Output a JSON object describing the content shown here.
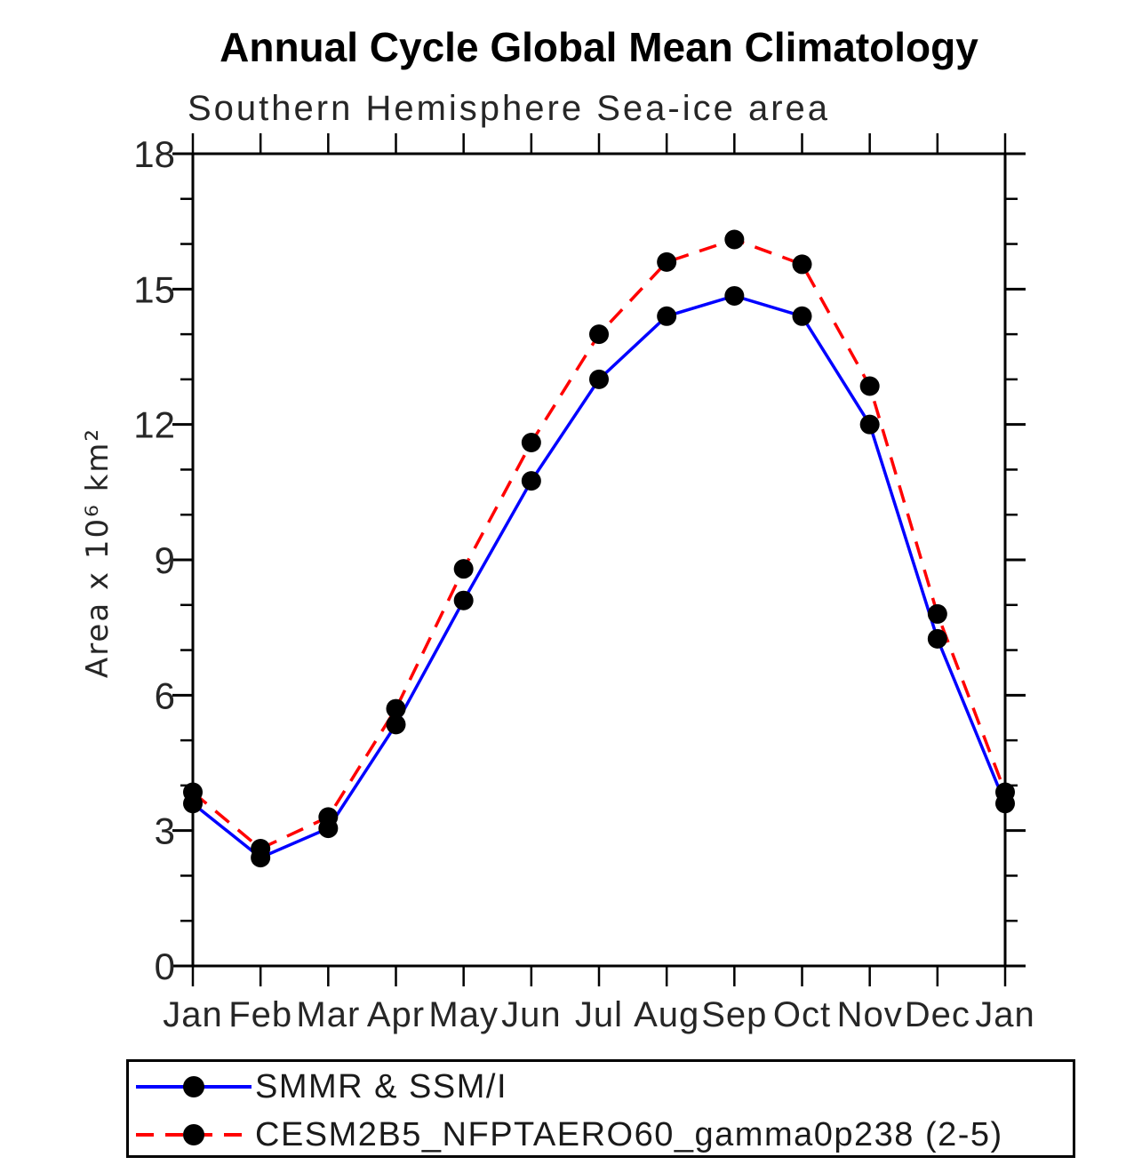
{
  "chart_data": {
    "type": "line",
    "title": "Annual Cycle Global Mean Climatology",
    "subtitle": "Southern Hemisphere Sea-ice area",
    "xlabel": "",
    "ylabel": "Area x 10⁶ km²",
    "categories": [
      "Jan",
      "Feb",
      "Mar",
      "Apr",
      "May",
      "Jun",
      "Jul",
      "Aug",
      "Sep",
      "Oct",
      "Nov",
      "Dec",
      "Jan"
    ],
    "ylim": [
      0,
      18
    ],
    "y_major_tick_step": 3,
    "y_minor_tick_step": 1,
    "y_major_tick_labels": [
      "0",
      "3",
      "6",
      "9",
      "12",
      "15",
      "18"
    ],
    "grid": false,
    "legend_position": "bottom-left-box",
    "axis_color": "#000000",
    "series": [
      {
        "name": "SMMR & SSM/I",
        "color": "#0000ff",
        "line_style": "solid",
        "marker": "circle",
        "marker_color": "#000000",
        "values": [
          3.6,
          2.4,
          3.05,
          5.35,
          8.1,
          10.75,
          13.0,
          14.4,
          14.85,
          14.4,
          12.0,
          7.25,
          3.6
        ]
      },
      {
        "name": "CESM2B5_NFPTAERO60_gamma0p238 (2-5)",
        "color": "#ff0000",
        "line_style": "dashed",
        "marker": "circle",
        "marker_color": "#000000",
        "values": [
          3.85,
          2.6,
          3.3,
          5.7,
          8.8,
          11.6,
          14.0,
          15.6,
          16.1,
          15.55,
          12.85,
          7.8,
          3.85
        ]
      }
    ]
  }
}
